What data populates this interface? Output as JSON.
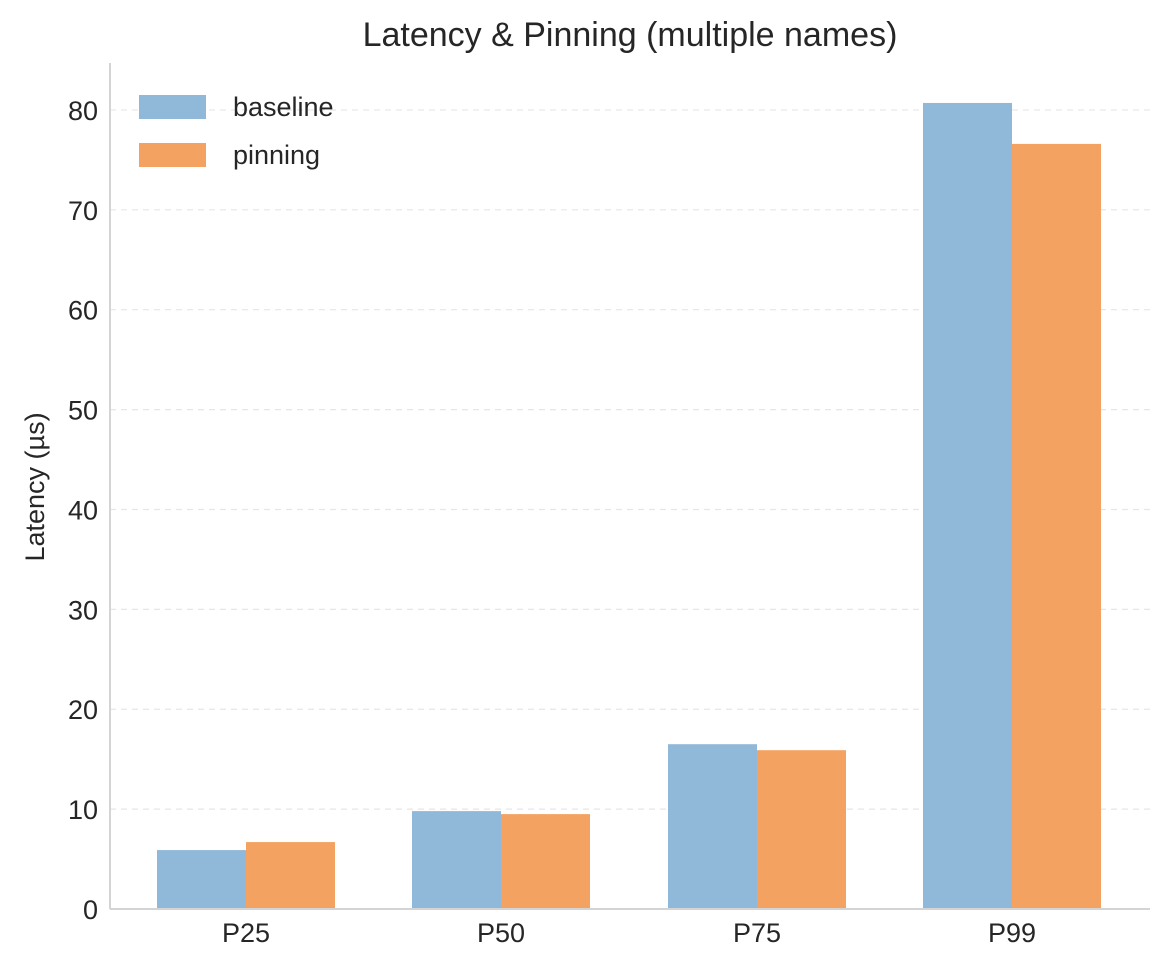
{
  "chart_data": {
    "type": "bar",
    "title": "Latency & Pinning (multiple names)",
    "xlabel": "",
    "ylabel": "Latency (µs)",
    "categories": [
      "P25",
      "P50",
      "P75",
      "P99"
    ],
    "series": [
      {
        "name": "baseline",
        "color": "#90b9d9",
        "values": [
          5.9,
          9.8,
          16.5,
          80.7
        ]
      },
      {
        "name": "pinning",
        "color": "#f4a261",
        "values": [
          6.7,
          9.5,
          15.9,
          76.6
        ]
      }
    ],
    "ylim": [
      0,
      84.7
    ],
    "yticks": [
      0,
      10,
      20,
      30,
      40,
      50,
      60,
      70,
      80
    ],
    "grid": true,
    "legend_position": "top-left"
  }
}
